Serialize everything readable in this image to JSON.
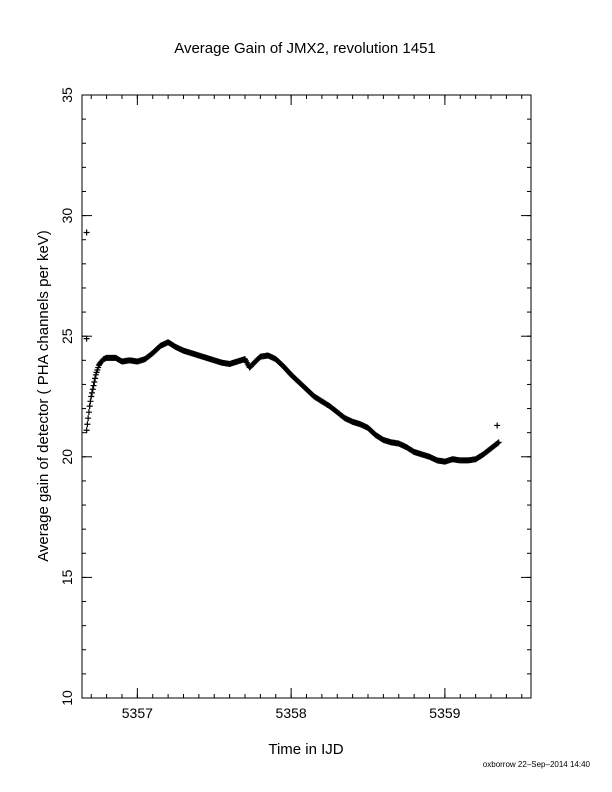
{
  "chart_data": {
    "type": "scatter",
    "title": "Average Gain of JMX2, revolution 1451",
    "xlabel": "Time in IJD",
    "ylabel": "Average gain of detector ( PHA channels per keV)",
    "xlim": [
      5356.64,
      5359.56
    ],
    "ylim": [
      10,
      35
    ],
    "xticks": [
      5357,
      5358,
      5359
    ],
    "yticks": [
      10,
      15,
      20,
      25,
      30,
      35
    ],
    "grid": false,
    "marker": "+",
    "outliers": [
      {
        "x": 5356.67,
        "y": 29.3
      },
      {
        "x": 5356.67,
        "y": 24.9
      },
      {
        "x": 5359.34,
        "y": 21.3
      }
    ],
    "series": [
      {
        "x": [
          5356.67,
          5356.68,
          5356.69,
          5356.7,
          5356.71,
          5356.72,
          5356.73,
          5356.74,
          5356.75,
          5356.76,
          5356.78,
          5356.8,
          5356.83,
          5356.86,
          5356.9,
          5356.95,
          5357.0,
          5357.05,
          5357.1,
          5357.15,
          5357.2,
          5357.25,
          5357.3,
          5357.35,
          5357.4,
          5357.45,
          5357.5,
          5357.55,
          5357.6,
          5357.65,
          5357.7,
          5357.73,
          5357.76,
          5357.8,
          5357.85,
          5357.9,
          5357.95,
          5358.0,
          5358.05,
          5358.1,
          5358.15,
          5358.2,
          5358.25,
          5358.3,
          5358.35,
          5358.4,
          5358.45,
          5358.5,
          5358.55,
          5358.6,
          5358.65,
          5358.7,
          5358.75,
          5358.8,
          5358.85,
          5358.9,
          5358.95,
          5359.0,
          5359.05,
          5359.1,
          5359.15,
          5359.2,
          5359.25,
          5359.3,
          5359.35
        ],
        "y": [
          21.1,
          21.6,
          22.1,
          22.5,
          22.8,
          23.1,
          23.4,
          23.6,
          23.8,
          23.9,
          24.05,
          24.1,
          24.1,
          24.1,
          23.95,
          24.0,
          23.95,
          24.05,
          24.3,
          24.6,
          24.75,
          24.55,
          24.4,
          24.3,
          24.2,
          24.1,
          24.0,
          23.9,
          23.85,
          23.95,
          24.05,
          23.7,
          23.9,
          24.15,
          24.2,
          24.05,
          23.75,
          23.4,
          23.1,
          22.8,
          22.5,
          22.3,
          22.1,
          21.85,
          21.6,
          21.45,
          21.35,
          21.2,
          20.9,
          20.7,
          20.6,
          20.55,
          20.4,
          20.2,
          20.1,
          20.0,
          19.85,
          19.8,
          19.9,
          19.85,
          19.85,
          19.9,
          20.1,
          20.35,
          20.6
        ]
      }
    ]
  },
  "footer": {
    "credit": "oxborrow 22–Sep–2014 14:40"
  }
}
